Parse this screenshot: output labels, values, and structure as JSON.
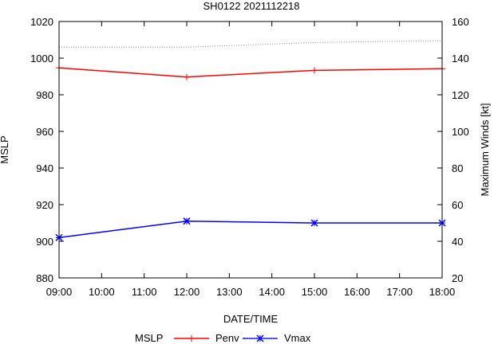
{
  "chart_data": {
    "type": "line",
    "title": "SH0122 2021112218",
    "xlabel": "DATE/TIME",
    "ylabel": "MSLP",
    "y2label": "Maximum Winds [kt]",
    "x_hours": [
      9,
      10,
      11,
      12,
      13,
      14,
      15,
      16,
      17,
      18
    ],
    "x_tick_labels": [
      "09:00",
      "10:00",
      "11:00",
      "12:00",
      "13:00",
      "14:00",
      "15:00",
      "16:00",
      "17:00",
      "18:00"
    ],
    "ylim": [
      880,
      1020
    ],
    "y_ticks": [
      880,
      900,
      920,
      940,
      960,
      980,
      1000,
      1020
    ],
    "y2lim": [
      20,
      160
    ],
    "y2_ticks": [
      20,
      40,
      60,
      80,
      100,
      120,
      140,
      160
    ],
    "legend_position": "bottom",
    "legend_label": "MSLP",
    "series": [
      {
        "name": "Penv",
        "axis": "left",
        "color": "#ff0000",
        "style": "solid",
        "marker": "plus",
        "x": [
          9,
          12,
          15,
          18
        ],
        "values": [
          994.7,
          989.7,
          993.3,
          994.2
        ]
      },
      {
        "name": "",
        "axis": "left",
        "color": "#888888",
        "style": "dotted",
        "marker": "none",
        "x": [
          9,
          12,
          15,
          18
        ],
        "values": [
          1006,
          1006,
          1008.5,
          1009.5
        ]
      },
      {
        "name": "Vmax",
        "axis": "right",
        "color": "#0000ff",
        "style": "solid",
        "marker": "star",
        "x": [
          9,
          12,
          15,
          18
        ],
        "values": [
          42,
          51,
          50,
          50
        ]
      }
    ]
  }
}
